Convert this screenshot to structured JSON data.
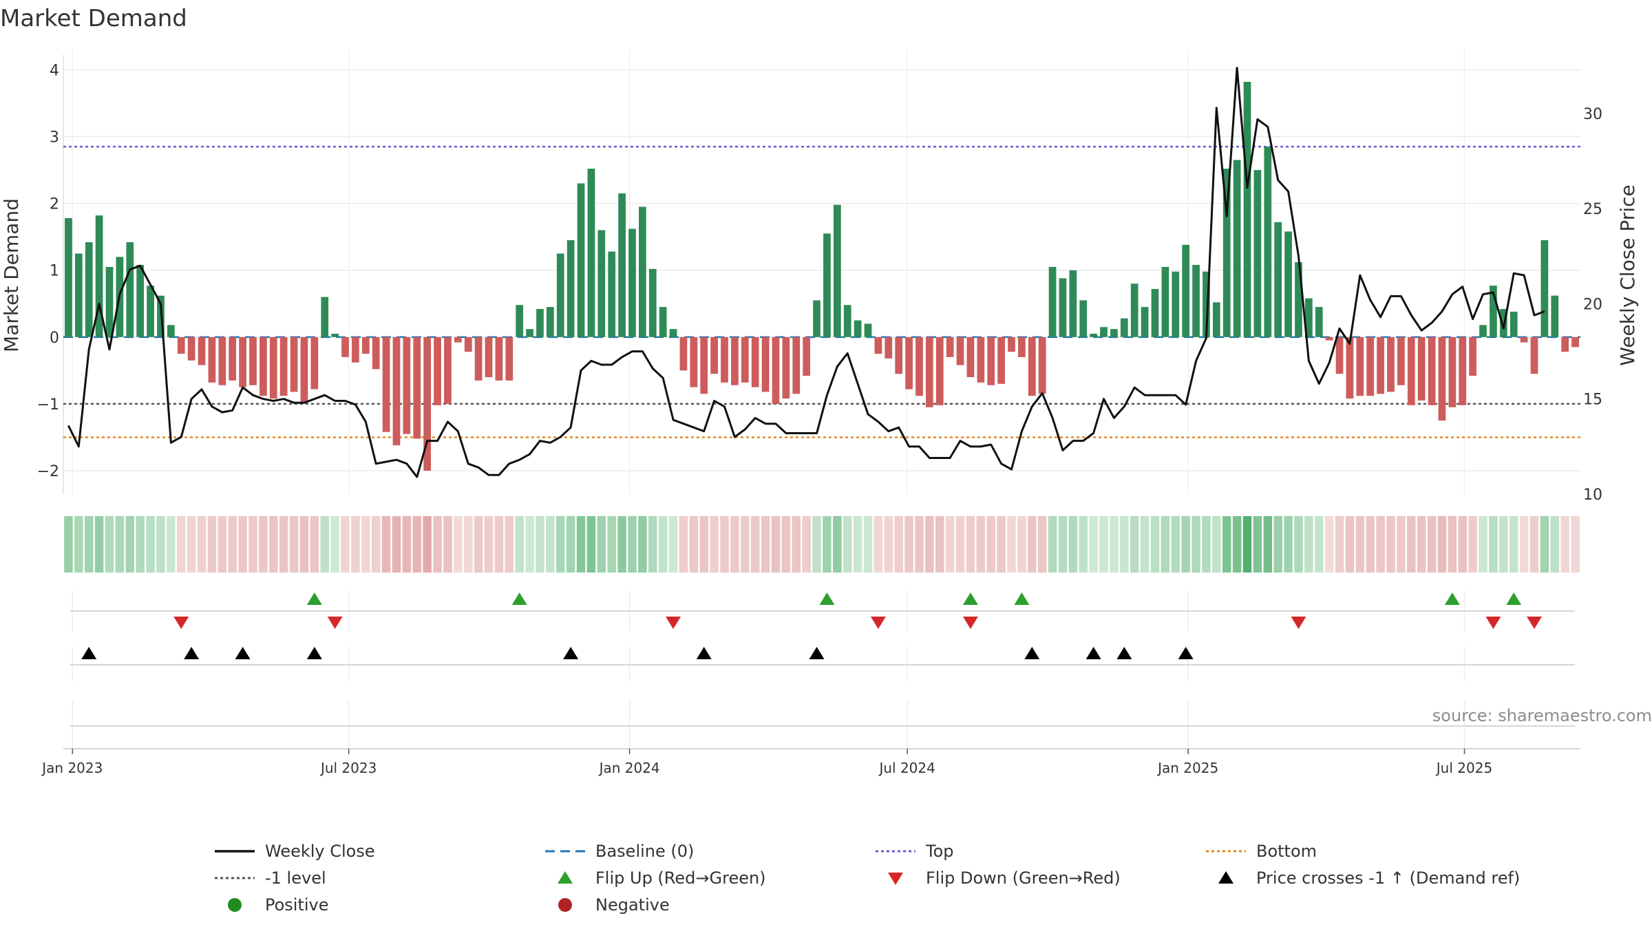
{
  "chart_data": {
    "type": "bar",
    "title": "Market Demand",
    "ylabel_left": "Market Demand",
    "ylabel_right": "Weekly Close Price",
    "ylim_left": [
      -2.35,
      4.2
    ],
    "ylim_right": [
      10,
      33
    ],
    "yticks_left": [
      -2,
      -1,
      0,
      1,
      2,
      3,
      4
    ],
    "yticks_left_labels": [
      "−2",
      "−1",
      "0",
      "1",
      "2",
      "3",
      "4"
    ],
    "yticks_right": [
      10,
      15,
      20,
      25,
      30
    ],
    "yticks_right_labels": [
      "10",
      "15",
      "20",
      "25",
      "30"
    ],
    "x_start": "2022-12-26",
    "x_end": "2025-09-15",
    "xtick_dates": [
      "2023-01-01",
      "2023-07-01",
      "2024-01-01",
      "2024-07-01",
      "2025-01-01",
      "2025-07-01"
    ],
    "xtick_labels": [
      "Jan 2023",
      "Jul 2023",
      "Jan 2024",
      "Jul 2024",
      "Jan 2025",
      "Jul 2025"
    ],
    "reference_lines": {
      "baseline": 0,
      "top": 2.85,
      "minus_one": -1,
      "bottom": -1.5
    },
    "series": [
      {
        "name": "Market Demand (weekly bars)",
        "values": [
          1.78,
          1.25,
          1.42,
          1.82,
          1.05,
          1.2,
          1.42,
          1.08,
          0.77,
          0.62,
          0.18,
          -0.25,
          -0.35,
          -0.42,
          -0.68,
          -0.72,
          -0.65,
          -0.75,
          -0.72,
          -0.88,
          -0.92,
          -0.88,
          -0.82,
          -0.98,
          -0.78,
          0.6,
          0.05,
          -0.3,
          -0.38,
          -0.25,
          -0.48,
          -1.42,
          -1.62,
          -1.45,
          -1.52,
          -2.0,
          -1.02,
          -1.0,
          -0.08,
          -0.22,
          -0.65,
          -0.6,
          -0.65,
          -0.65,
          0.48,
          0.12,
          0.42,
          0.45,
          1.25,
          1.45,
          2.3,
          2.52,
          1.6,
          1.28,
          2.15,
          1.62,
          1.95,
          1.02,
          0.45,
          0.12,
          -0.5,
          -0.75,
          -0.85,
          -0.55,
          -0.68,
          -0.72,
          -0.68,
          -0.75,
          -0.82,
          -1.0,
          -0.92,
          -0.85,
          -0.58,
          0.55,
          1.55,
          1.98,
          0.48,
          0.25,
          0.2,
          -0.25,
          -0.32,
          -0.55,
          -0.78,
          -0.88,
          -1.05,
          -1.02,
          -0.3,
          -0.42,
          -0.6,
          -0.68,
          -0.72,
          -0.7,
          -0.22,
          -0.3,
          -0.88,
          -0.85,
          1.05,
          0.88,
          1.0,
          0.55,
          0.05,
          0.15,
          0.12,
          0.28,
          0.8,
          0.45,
          0.72,
          1.05,
          0.98,
          1.38,
          1.08,
          0.98,
          0.52,
          2.52,
          2.65,
          3.82,
          2.5,
          2.85,
          1.72,
          1.58,
          1.12,
          0.58,
          0.45,
          -0.05,
          -0.55,
          -0.92,
          -0.88,
          -0.88,
          -0.85,
          -0.82,
          -0.72,
          -1.02,
          -0.95,
          -1.02,
          -1.25,
          -1.05,
          -1.02,
          -0.58,
          0.18,
          0.77,
          0.42,
          0.38,
          -0.08,
          -0.55,
          1.45,
          0.62,
          -0.22,
          -0.15
        ],
        "color_positive": "#2e8b57",
        "color_negative": "#cd5c5c"
      },
      {
        "name": "Weekly Close",
        "axis": "right",
        "color": "#111111",
        "values": [
          13.6,
          12.5,
          17.6,
          20.0,
          17.6,
          20.5,
          21.8,
          22.0,
          21.0,
          20.0,
          12.7,
          13.0,
          15.0,
          15.5,
          14.6,
          14.3,
          14.4,
          15.6,
          15.2,
          15.0,
          14.9,
          15.0,
          14.8,
          14.8,
          15.0,
          15.2,
          14.9,
          14.9,
          14.7,
          13.8,
          11.6,
          11.7,
          11.8,
          11.6,
          10.9,
          12.8,
          12.8,
          13.8,
          13.3,
          11.6,
          11.4,
          11.0,
          11.0,
          11.6,
          11.8,
          12.1,
          12.8,
          12.7,
          13.0,
          13.5,
          16.5,
          17.0,
          16.8,
          16.8,
          17.2,
          17.5,
          17.5,
          16.6,
          16.1,
          13.9,
          13.7,
          13.5,
          13.3,
          14.9,
          14.6,
          13.0,
          13.4,
          14.0,
          13.7,
          13.7,
          13.2,
          13.2,
          13.2,
          13.2,
          15.2,
          16.7,
          17.4,
          15.8,
          14.2,
          13.8,
          13.3,
          13.5,
          12.5,
          12.5,
          11.9,
          11.9,
          11.9,
          12.8,
          12.5,
          12.5,
          12.6,
          11.6,
          11.3,
          13.3,
          14.6,
          15.3,
          14.0,
          12.3,
          12.8,
          12.8,
          13.2,
          15.0,
          14.0,
          14.6,
          15.6,
          15.2,
          15.2,
          15.2,
          15.2,
          14.7,
          17.0,
          18.2,
          30.3,
          24.6,
          32.4,
          26.1,
          29.7,
          29.3,
          26.5,
          25.9,
          22.5,
          17.0,
          15.8,
          16.9,
          18.7,
          17.9,
          21.5,
          20.2,
          19.3,
          20.4,
          20.4,
          19.4,
          18.6,
          19.0,
          19.6,
          20.5,
          20.9,
          19.2,
          20.5,
          20.6,
          18.7,
          21.6,
          21.5,
          19.4,
          19.6
        ]
      }
    ],
    "tile_band": {
      "name": "Demand heat strip",
      "positive_color": "#2e9e4f",
      "negative_color": "#c85c5c"
    },
    "flip_up_weeks": [
      24,
      44,
      74,
      88,
      93,
      135,
      141
    ],
    "flip_down_weeks": [
      11,
      26,
      59,
      79,
      88,
      120,
      139,
      143
    ],
    "price_cross_weeks": [
      2,
      12,
      17,
      24,
      49,
      62,
      73,
      94,
      100,
      103,
      109
    ],
    "flip_up_color": "#2ca02c",
    "flip_down_color": "#d62728",
    "price_cross_color": "#000000",
    "legend": [
      {
        "label": "Weekly Close",
        "marker": "line",
        "color": "#111111"
      },
      {
        "label": "Baseline (0)",
        "marker": "dash",
        "color": "#1f77b4"
      },
      {
        "label": "Top",
        "marker": "dot",
        "color": "#6a5acd"
      },
      {
        "label": "Bottom",
        "marker": "dot",
        "color": "#e08a1e"
      },
      {
        "label": "-1 level",
        "marker": "dot",
        "color": "#555555"
      },
      {
        "label": "Flip Up (Red→Green)",
        "marker": "triangle-up",
        "color": "#2ca02c"
      },
      {
        "label": "Flip Down (Green→Red)",
        "marker": "triangle-down",
        "color": "#d62728"
      },
      {
        "label": "Price crosses -1 ↑ (Demand ref)",
        "marker": "triangle-up",
        "color": "#000000"
      },
      {
        "label": "Positive",
        "marker": "circle",
        "color": "#228b22"
      },
      {
        "label": "Negative",
        "marker": "circle",
        "color": "#b22222"
      }
    ],
    "source": "source: sharemaestro.com"
  }
}
